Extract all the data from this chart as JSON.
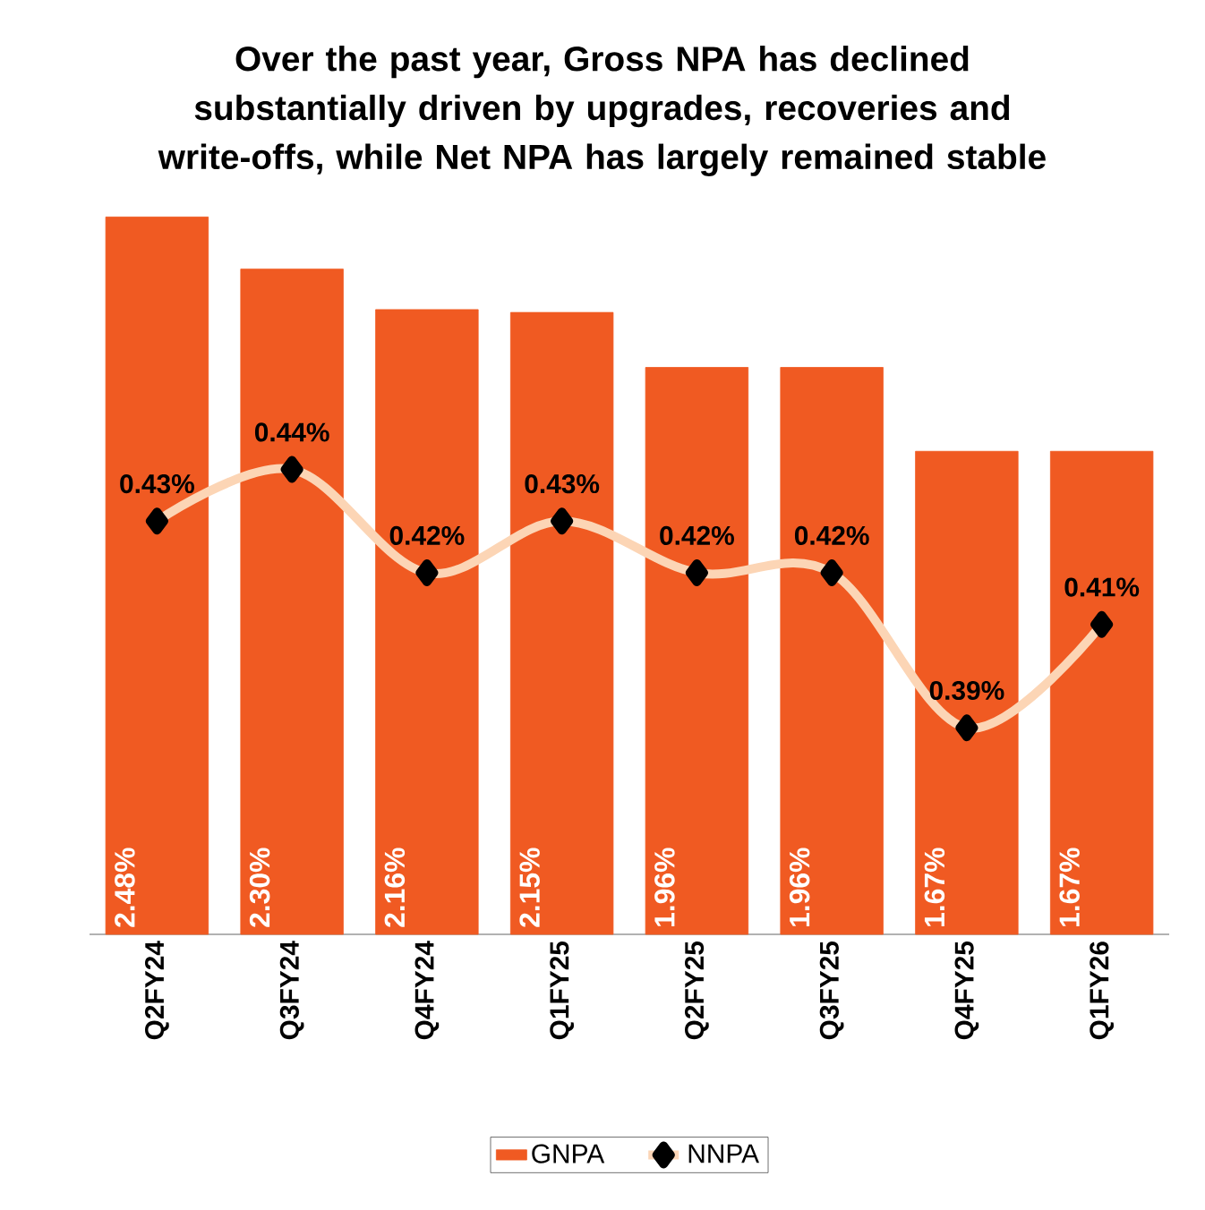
{
  "chart_data": {
    "type": "bar",
    "title": "Over the past year, Gross NPA has declined substantially driven by upgrades, recoveries and write-offs, while Net NPA has largely remained stable",
    "categories": [
      "Q2FY24",
      "Q3FY24",
      "Q4FY24",
      "Q1FY25",
      "Q2FY25",
      "Q3FY25",
      "Q4FY25",
      "Q1FY26"
    ],
    "series": [
      {
        "name": "GNPA",
        "color": "#f05a22",
        "values": [
          2.48,
          2.3,
          2.16,
          2.15,
          1.96,
          1.96,
          1.67,
          1.67
        ],
        "value_labels": [
          "2.48%",
          "2.30%",
          "2.16%",
          "2.15%",
          "1.96%",
          "1.96%",
          "1.67%",
          "1.67%"
        ]
      },
      {
        "name": "NNPA",
        "type": "line",
        "axis": "y2",
        "color": "#fcd5b5",
        "marker": "diamond",
        "values": [
          0.43,
          0.44,
          0.42,
          0.43,
          0.42,
          0.42,
          0.39,
          0.41
        ],
        "value_labels": [
          "0.43%",
          "0.44%",
          "0.42%",
          "0.43%",
          "0.42%",
          "0.42%",
          "0.39%",
          "0.41%"
        ]
      }
    ],
    "ylim": [
      0,
      2.5
    ],
    "y2lim": [
      0.35,
      0.49
    ],
    "tick_labels": "x",
    "legend": "bottom",
    "grid": false
  }
}
